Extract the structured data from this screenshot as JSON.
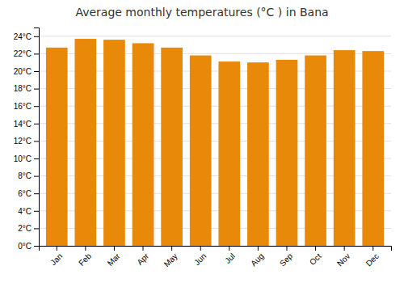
{
  "chart_data": {
    "type": "bar",
    "title": "Average monthly temperatures (°C ) in Bana",
    "categories": [
      "Jan",
      "Feb",
      "Mar",
      "Apr",
      "May",
      "Jun",
      "Jul",
      "Aug",
      "Sep",
      "Oct",
      "Nov",
      "Dec"
    ],
    "values": [
      22.7,
      23.7,
      23.6,
      23.2,
      22.7,
      21.8,
      21.1,
      21.0,
      21.3,
      21.8,
      22.4,
      22.3
    ],
    "color": "#E8890A",
    "ylim": [
      0,
      25
    ],
    "yticks": [
      {
        "value": 0,
        "label": "0°C"
      },
      {
        "value": 2,
        "label": "2°C"
      },
      {
        "value": 4,
        "label": "4°C"
      },
      {
        "value": 6,
        "label": "6°C"
      },
      {
        "value": 8,
        "label": "8°C"
      },
      {
        "value": 10,
        "label": "10°C"
      },
      {
        "value": 12,
        "label": "12°C"
      },
      {
        "value": 14,
        "label": "14°C"
      },
      {
        "value": 16,
        "label": "16°C"
      },
      {
        "value": 18,
        "label": "18°C"
      },
      {
        "value": 20,
        "label": "20°C"
      },
      {
        "value": 22,
        "label": "22°C"
      },
      {
        "value": 24,
        "label": "24°C"
      }
    ],
    "grid": true
  }
}
